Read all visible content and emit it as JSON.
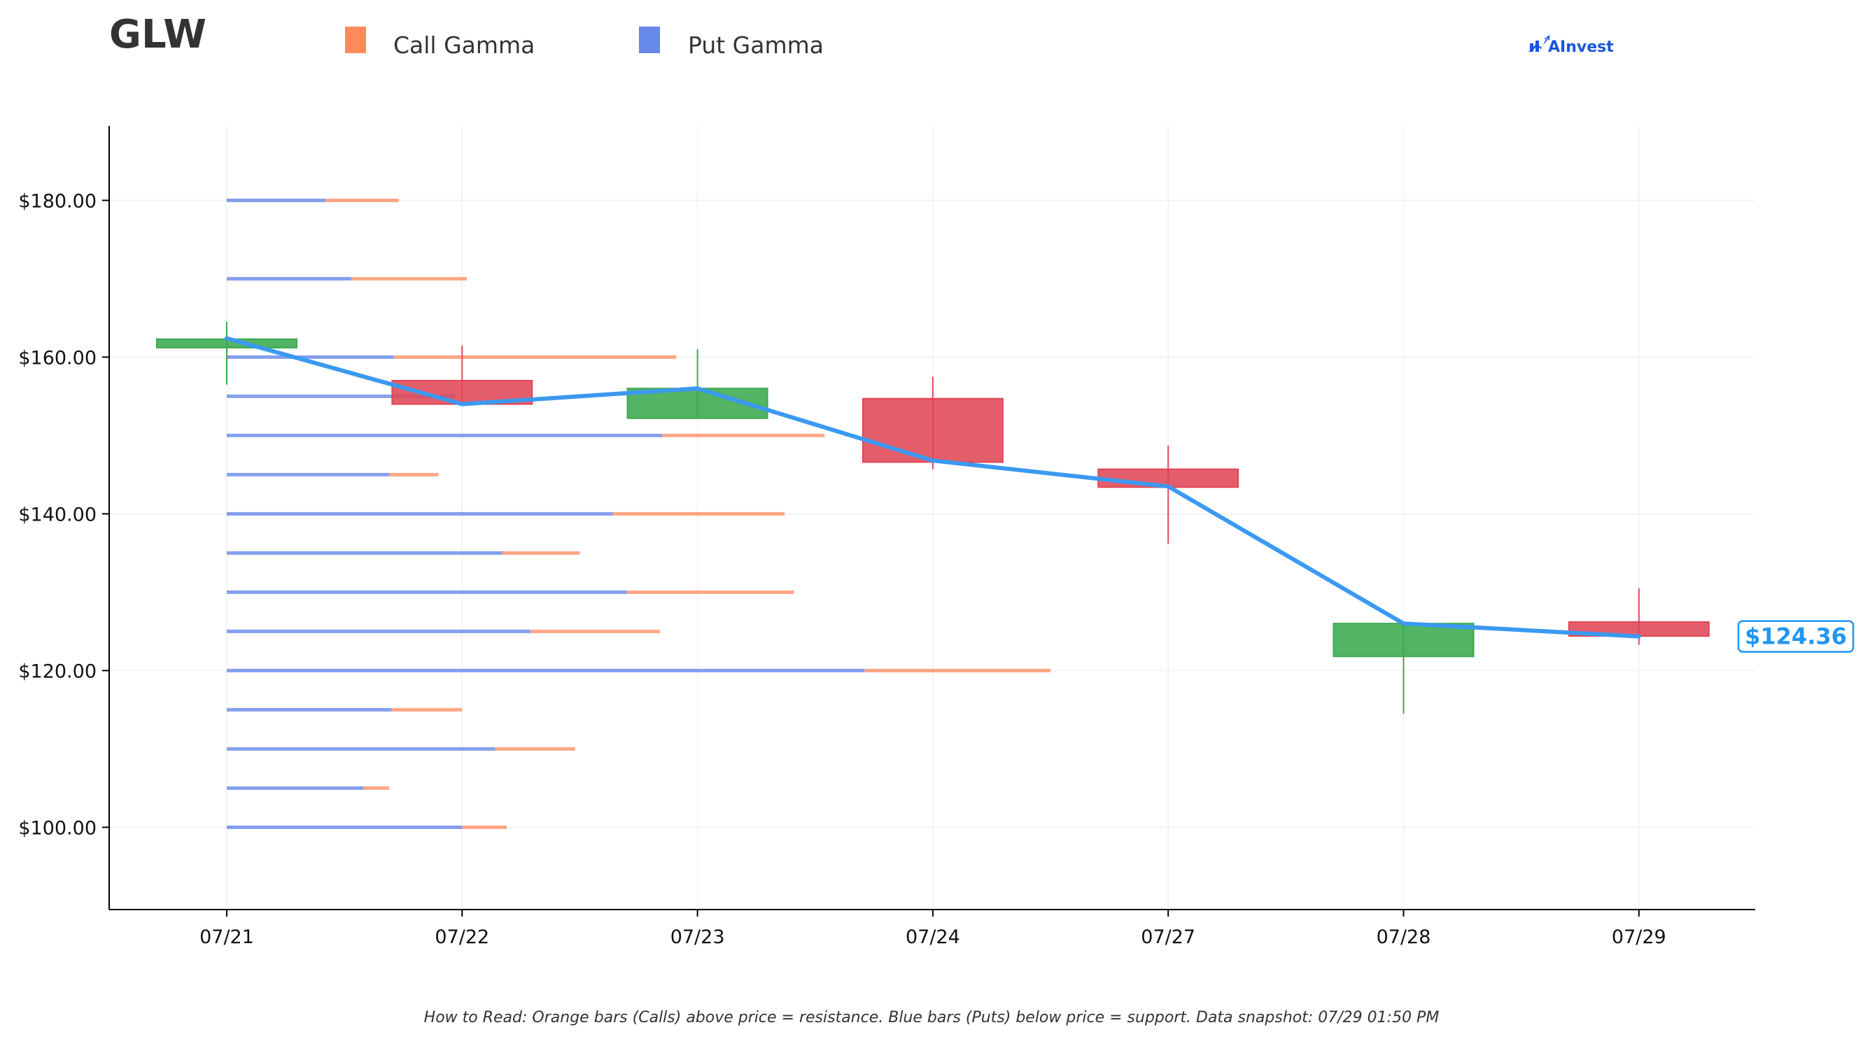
{
  "header": {
    "ticker": "GLW",
    "brand": "AInvest"
  },
  "legend": [
    {
      "label": "Call Gamma",
      "color": "#ff8a5c"
    },
    {
      "label": "Put Gamma",
      "color": "#6688e8"
    }
  ],
  "footnote": "How to Read: Orange bars (Calls) above price = resistance. Blue bars (Puts) below price = support. Data snapshot: 07/29 01:50 PM",
  "colors": {
    "up": "#3aaa4e",
    "down": "#e04757",
    "price_line": "#3b99f0",
    "call": "#ff8a5c",
    "put": "#6688e8"
  },
  "chart_data": {
    "type": "candlestick",
    "categories": [
      "07/21",
      "07/22",
      "07/23",
      "07/24",
      "07/27",
      "07/28",
      "07/29"
    ],
    "ylim": [
      89.5,
      189.5
    ],
    "yticks": [
      100,
      120,
      140,
      160,
      180
    ],
    "ytick_labels": [
      "$100.00",
      "$120.00",
      "$140.00",
      "$160.00",
      "$180.00"
    ],
    "grid": true,
    "candles": [
      {
        "date": "07/21",
        "open": 161.2,
        "close": 162.3,
        "high": 164.5,
        "low": 156.5
      },
      {
        "date": "07/22",
        "open": 157.0,
        "close": 154.0,
        "high": 161.5,
        "low": 154.0
      },
      {
        "date": "07/23",
        "open": 152.2,
        "close": 156.0,
        "high": 161.0,
        "low": 152.2
      },
      {
        "date": "07/24",
        "open": 154.7,
        "close": 146.6,
        "high": 157.5,
        "low": 145.7
      },
      {
        "date": "07/27",
        "open": 145.7,
        "close": 143.4,
        "high": 148.7,
        "low": 136.2
      },
      {
        "date": "07/28",
        "open": 121.8,
        "close": 126.0,
        "high": 126.0,
        "low": 114.5
      },
      {
        "date": "07/29",
        "open": 126.2,
        "close": 124.4,
        "high": 130.5,
        "low": 123.3
      }
    ],
    "price_line": [
      162.4,
      154.0,
      156.0,
      146.8,
      143.5,
      126.0,
      124.36
    ],
    "current_price": 124.36,
    "current_price_label": "$124.36",
    "gamma_bars": [
      {
        "strike": 180,
        "put": 0.42,
        "call": 0.31
      },
      {
        "strike": 170,
        "put": 0.53,
        "call": 0.49
      },
      {
        "strike": 160,
        "put": 0.71,
        "call": 1.2
      },
      {
        "strike": 155,
        "put": 0.97,
        "call": 0.0
      },
      {
        "strike": 150,
        "put": 1.85,
        "call": 0.69
      },
      {
        "strike": 145,
        "put": 0.69,
        "call": 0.21
      },
      {
        "strike": 140,
        "put": 1.64,
        "call": 0.73
      },
      {
        "strike": 135,
        "put": 1.17,
        "call": 0.33
      },
      {
        "strike": 130,
        "put": 1.7,
        "call": 0.71
      },
      {
        "strike": 125,
        "put": 1.29,
        "call": 0.55
      },
      {
        "strike": 120,
        "put": 2.71,
        "call": 0.79
      },
      {
        "strike": 115,
        "put": 0.7,
        "call": 0.3
      },
      {
        "strike": 110,
        "put": 1.14,
        "call": 0.34
      },
      {
        "strike": 105,
        "put": 0.58,
        "call": 0.11
      },
      {
        "strike": 100,
        "put": 1.0,
        "call": 0.19
      }
    ]
  }
}
